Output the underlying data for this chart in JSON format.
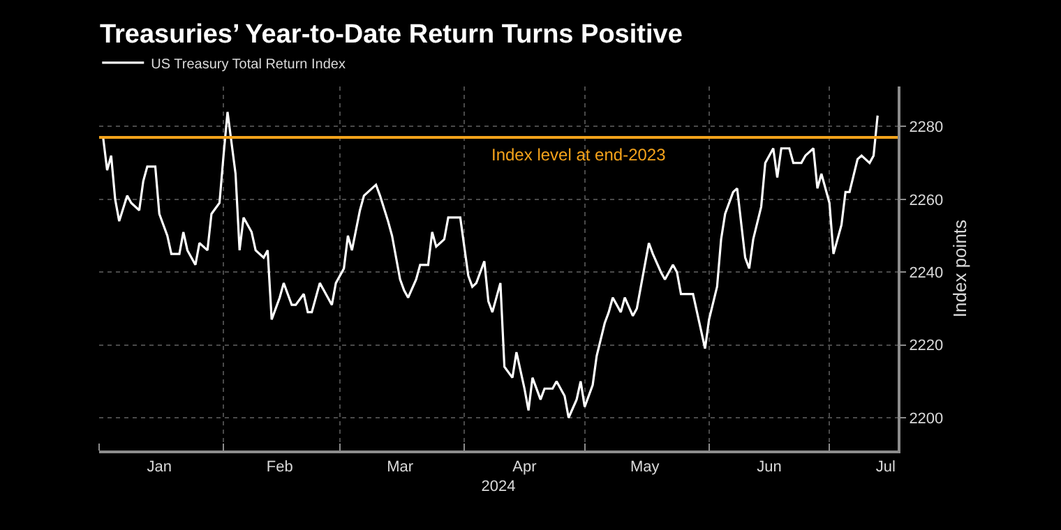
{
  "chart_data": {
    "type": "line",
    "title": "Treasuries’ Year-to-Date Return Turns Positive",
    "xlabel": "2024",
    "ylabel": "Index points",
    "legend": "top left",
    "grid": true,
    "marker": "none",
    "line_style": "solid",
    "xlim": [
      "2024-01-01",
      "2024-07-18"
    ],
    "xticks": [
      {
        "value": "2024-01-01",
        "label": null
      },
      {
        "value": "2024-01-16",
        "label": "Jan"
      },
      {
        "value": "2024-02-01",
        "label": null
      },
      {
        "value": "2024-02-15",
        "label": "Feb"
      },
      {
        "value": "2024-03-01",
        "label": null
      },
      {
        "value": "2024-03-16",
        "label": "Mar"
      },
      {
        "value": "2024-04-01",
        "label": null
      },
      {
        "value": "2024-04-16",
        "label": "Apr"
      },
      {
        "value": "2024-05-01",
        "label": null
      },
      {
        "value": "2024-05-16",
        "label": "May"
      },
      {
        "value": "2024-06-01",
        "label": null
      },
      {
        "value": "2024-06-16",
        "label": "Jun"
      },
      {
        "value": "2024-07-01",
        "label": null
      },
      {
        "value": "2024-07-15",
        "label": "Jul"
      }
    ],
    "ylim": [
      2191,
      2291
    ],
    "yticks": [
      2200,
      2220,
      2240,
      2260,
      2280
    ],
    "ref_lines": [
      {
        "axis": "y",
        "value": 2277,
        "label": "Index level at end-2023",
        "color": "#f5a31b",
        "line_style": "solid"
      }
    ],
    "series": [
      {
        "name": "US Treasury Total Return Index",
        "color": "#ffffff",
        "x": [
          "2024-01-02",
          "2024-01-03",
          "2024-01-04",
          "2024-01-05",
          "2024-01-06",
          "2024-01-08",
          "2024-01-09",
          "2024-01-11",
          "2024-01-12",
          "2024-01-13",
          "2024-01-15",
          "2024-01-16",
          "2024-01-18",
          "2024-01-19",
          "2024-01-21",
          "2024-01-22",
          "2024-01-23",
          "2024-01-25",
          "2024-01-26",
          "2024-01-28",
          "2024-01-29",
          "2024-01-31",
          "2024-02-01",
          "2024-02-02",
          "2024-02-04",
          "2024-02-05",
          "2024-02-06",
          "2024-02-08",
          "2024-02-09",
          "2024-02-11",
          "2024-02-12",
          "2024-02-13",
          "2024-02-15",
          "2024-02-16",
          "2024-02-18",
          "2024-02-19",
          "2024-02-21",
          "2024-02-22",
          "2024-02-23",
          "2024-02-25",
          "2024-02-26",
          "2024-02-28",
          "2024-02-29",
          "2024-03-02",
          "2024-03-03",
          "2024-03-04",
          "2024-03-06",
          "2024-03-07",
          "2024-03-09",
          "2024-03-10",
          "2024-03-11",
          "2024-03-13",
          "2024-03-14",
          "2024-03-16",
          "2024-03-17",
          "2024-03-18",
          "2024-03-20",
          "2024-03-21",
          "2024-03-23",
          "2024-03-24",
          "2024-03-25",
          "2024-03-27",
          "2024-03-28",
          "2024-03-30",
          "2024-03-31",
          "2024-04-02",
          "2024-04-03",
          "2024-04-04",
          "2024-04-06",
          "2024-04-07",
          "2024-04-08",
          "2024-04-10",
          "2024-04-11",
          "2024-04-13",
          "2024-04-14",
          "2024-04-16",
          "2024-04-17",
          "2024-04-18",
          "2024-04-20",
          "2024-04-21",
          "2024-04-23",
          "2024-04-24",
          "2024-04-26",
          "2024-04-27",
          "2024-04-29",
          "2024-04-30",
          "2024-05-01",
          "2024-05-03",
          "2024-05-04",
          "2024-05-06",
          "2024-05-07",
          "2024-05-08",
          "2024-05-10",
          "2024-05-11",
          "2024-05-13",
          "2024-05-14",
          "2024-05-15",
          "2024-05-17",
          "2024-05-18",
          "2024-05-20",
          "2024-05-21",
          "2024-05-23",
          "2024-05-24",
          "2024-05-25",
          "2024-05-27",
          "2024-05-28",
          "2024-05-31",
          "2024-06-01",
          "2024-06-03",
          "2024-06-04",
          "2024-06-05",
          "2024-06-07",
          "2024-06-08",
          "2024-06-10",
          "2024-06-11",
          "2024-06-12",
          "2024-06-14",
          "2024-06-15",
          "2024-06-17",
          "2024-06-18",
          "2024-06-19",
          "2024-06-21",
          "2024-06-22",
          "2024-06-24",
          "2024-06-25",
          "2024-06-27",
          "2024-06-28",
          "2024-06-29",
          "2024-07-01",
          "2024-07-02",
          "2024-07-04",
          "2024-07-05",
          "2024-07-06",
          "2024-07-08",
          "2024-07-09",
          "2024-07-11",
          "2024-07-12",
          "2024-07-13"
        ],
        "values": [
          2277,
          2268,
          2272,
          2260,
          2254,
          2261,
          2259,
          2257,
          2265,
          2269,
          2269,
          2256,
          2250,
          2245,
          2245,
          2251,
          2246,
          2242,
          2248,
          2246,
          2256,
          2259,
          2272,
          2284,
          2267,
          2246,
          2255,
          2251,
          2246,
          2244,
          2246,
          2227,
          2233,
          2237,
          2231,
          2231,
          2234,
          2229,
          2229,
          2237,
          2235,
          2231,
          2237,
          2241,
          2250,
          2246,
          2257,
          2261,
          2263,
          2264,
          2261,
          2254,
          2250,
          2238,
          2235,
          2233,
          2238,
          2242,
          2242,
          2251,
          2247,
          2249,
          2255,
          2255,
          2255,
          2239,
          2236,
          2237,
          2243,
          2232,
          2229,
          2237,
          2214,
          2211,
          2218,
          2208,
          2202,
          2211,
          2205,
          2208,
          2208,
          2210,
          2206,
          2200,
          2205,
          2210,
          2203,
          2209,
          2217,
          2226,
          2229,
          2233,
          2229,
          2233,
          2228,
          2230,
          2236,
          2248,
          2245,
          2240,
          2238,
          2242,
          2240,
          2234,
          2234,
          2234,
          2219,
          2227,
          2236,
          2249,
          2256,
          2262,
          2263,
          2244,
          2241,
          2249,
          2258,
          2270,
          2274,
          2266,
          2274,
          2274,
          2270,
          2270,
          2272,
          2274,
          2263,
          2267,
          2259,
          2245,
          2253,
          2262,
          2262,
          2271,
          2272,
          2270,
          2272,
          2283
        ]
      }
    ]
  }
}
